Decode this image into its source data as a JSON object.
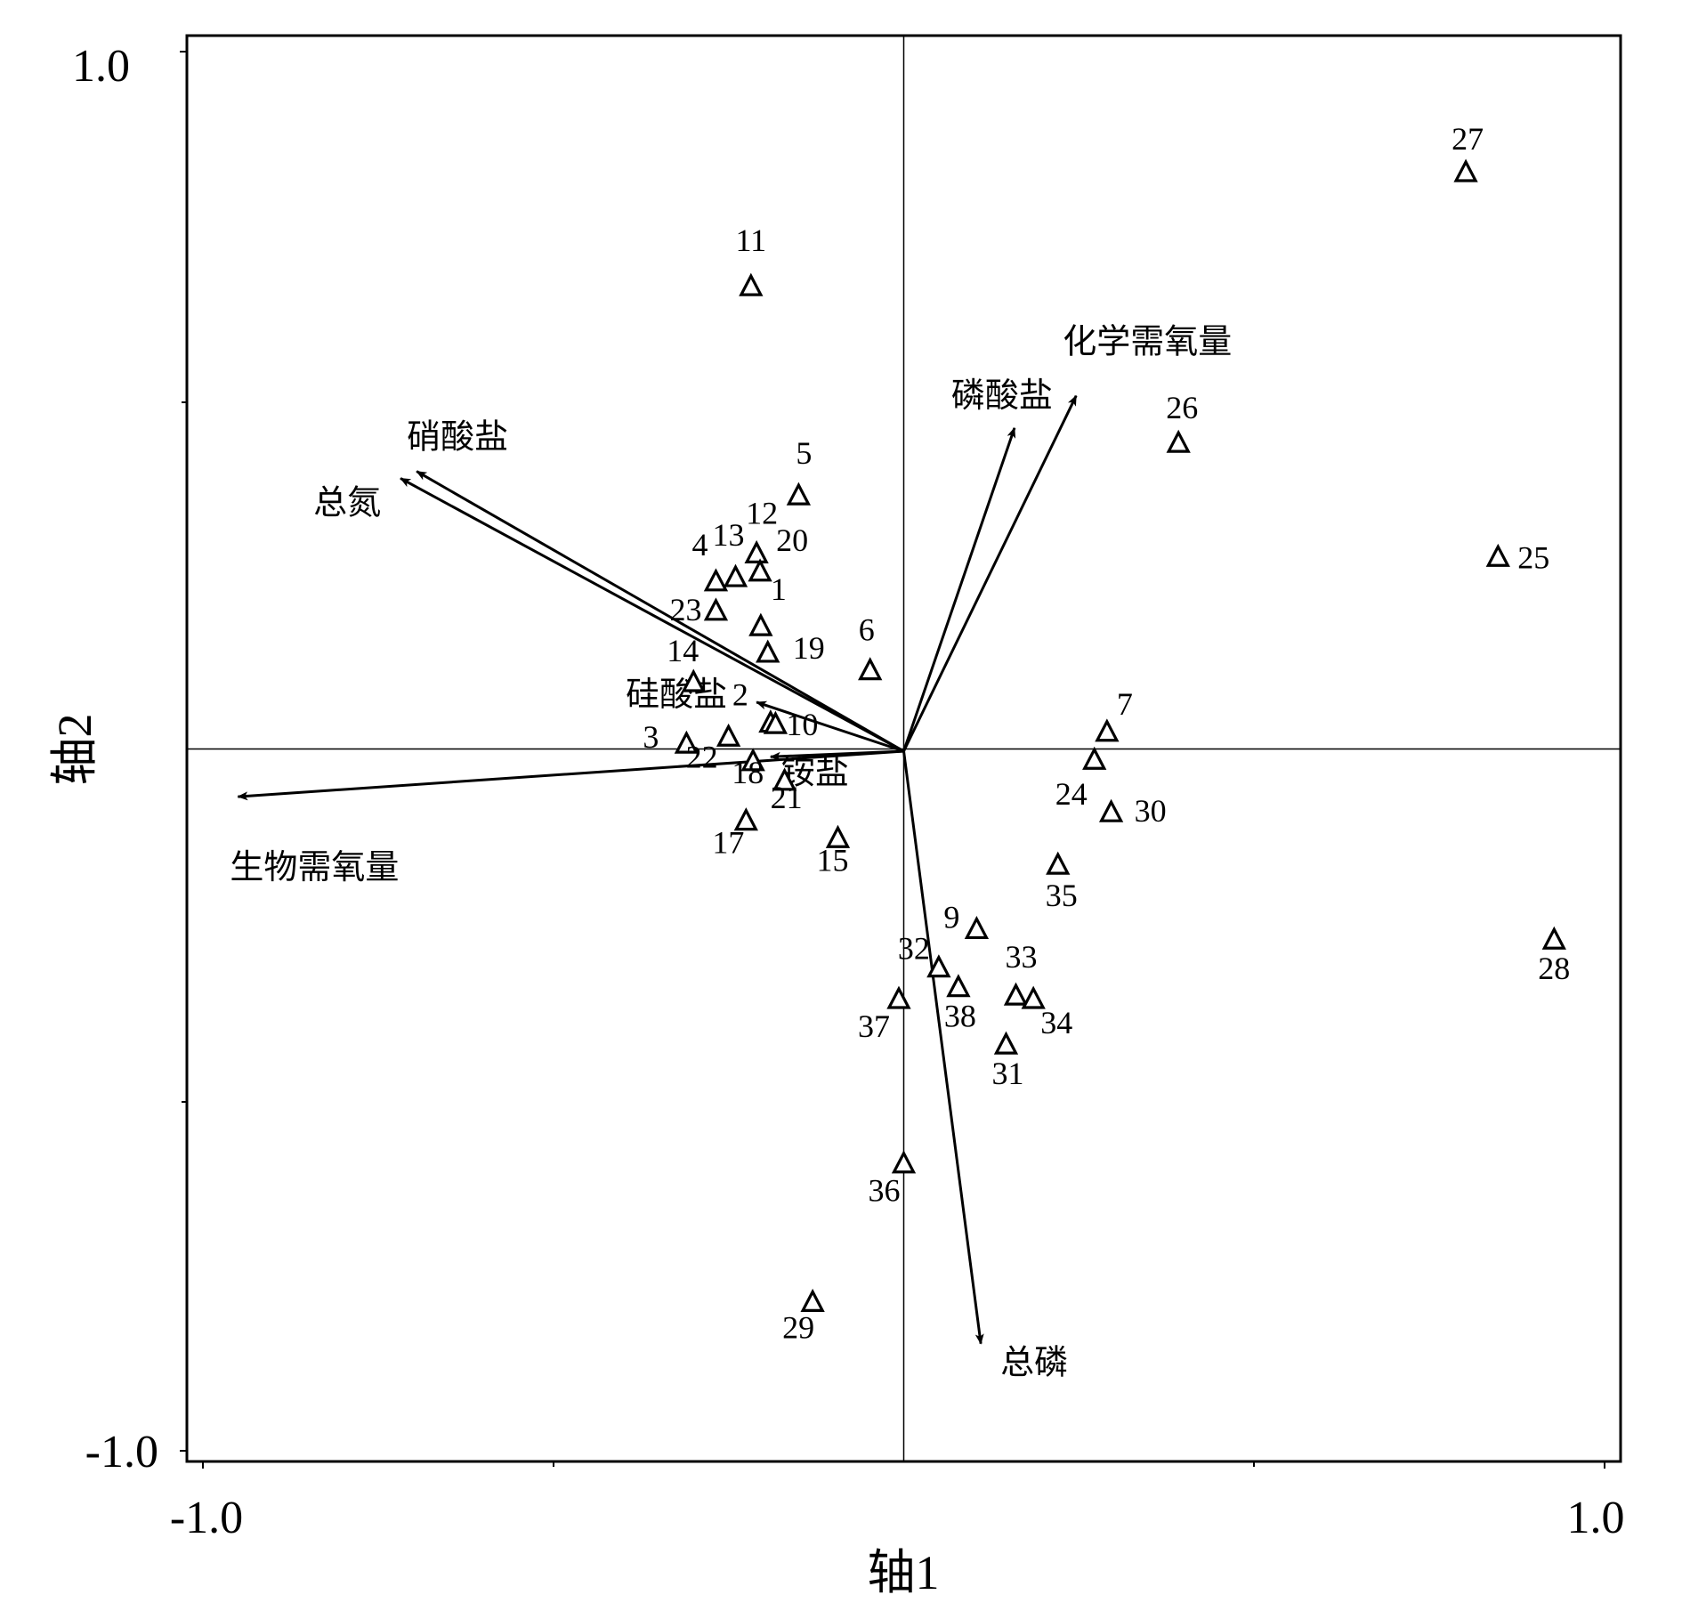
{
  "chart_data": {
    "type": "scatter",
    "title": "",
    "xlabel": "轴1",
    "ylabel": "轴2",
    "xlim": [
      -1.0,
      1.0
    ],
    "ylim": [
      -1.0,
      1.0
    ],
    "x_tick_labels": [
      "-1.0",
      "1.0"
    ],
    "y_tick_labels": [
      "1.0",
      "-1.0"
    ],
    "grid": false,
    "reference_lines": "x=0 and y=0",
    "sites": [
      {
        "label": "1",
        "x": -0.204,
        "y": 0.178
      },
      {
        "label": "2",
        "x": -0.19,
        "y": 0.04
      },
      {
        "label": "3",
        "x": -0.31,
        "y": 0.01
      },
      {
        "label": "4",
        "x": -0.268,
        "y": 0.242
      },
      {
        "label": "5",
        "x": -0.15,
        "y": 0.365
      },
      {
        "label": "6",
        "x": -0.048,
        "y": 0.115
      },
      {
        "label": "7",
        "x": 0.29,
        "y": 0.027
      },
      {
        "label": "9",
        "x": 0.104,
        "y": -0.255
      },
      {
        "label": "10",
        "x": -0.183,
        "y": 0.038
      },
      {
        "label": "11",
        "x": -0.218,
        "y": 0.664
      },
      {
        "label": "12",
        "x": -0.21,
        "y": 0.282
      },
      {
        "label": "13",
        "x": -0.24,
        "y": 0.248
      },
      {
        "label": "14",
        "x": -0.3,
        "y": 0.098
      },
      {
        "label": "15",
        "x": -0.094,
        "y": -0.125
      },
      {
        "label": "17",
        "x": -0.225,
        "y": -0.1
      },
      {
        "label": "18",
        "x": -0.215,
        "y": -0.015
      },
      {
        "label": "19",
        "x": -0.194,
        "y": 0.14
      },
      {
        "label": "20",
        "x": -0.205,
        "y": 0.256
      },
      {
        "label": "21",
        "x": -0.17,
        "y": -0.043
      },
      {
        "label": "22",
        "x": -0.25,
        "y": 0.02
      },
      {
        "label": "23",
        "x": -0.268,
        "y": 0.2
      },
      {
        "label": "24",
        "x": 0.272,
        "y": -0.013
      },
      {
        "label": "25",
        "x": 0.848,
        "y": 0.277
      },
      {
        "label": "26",
        "x": 0.392,
        "y": 0.44
      },
      {
        "label": "27",
        "x": 0.802,
        "y": 0.827
      },
      {
        "label": "28",
        "x": 0.928,
        "y": -0.27
      },
      {
        "label": "29",
        "x": -0.13,
        "y": -0.788
      },
      {
        "label": "30",
        "x": 0.296,
        "y": -0.088
      },
      {
        "label": "31",
        "x": 0.146,
        "y": -0.42
      },
      {
        "label": "32",
        "x": 0.05,
        "y": -0.31
      },
      {
        "label": "33",
        "x": 0.16,
        "y": -0.35
      },
      {
        "label": "34",
        "x": 0.185,
        "y": -0.355
      },
      {
        "label": "35",
        "x": 0.22,
        "y": -0.163
      },
      {
        "label": "36",
        "x": 0.0,
        "y": -0.59
      },
      {
        "label": "37",
        "x": -0.007,
        "y": -0.355
      },
      {
        "label": "38",
        "x": 0.078,
        "y": -0.338
      }
    ],
    "vectors": [
      {
        "label": "化学需氧量",
        "x": 0.246,
        "y": 0.508
      },
      {
        "label": "磷酸盐",
        "x": 0.158,
        "y": 0.462
      },
      {
        "label": "硝酸盐",
        "x": -0.695,
        "y": 0.4
      },
      {
        "label": "总氮",
        "x": -0.718,
        "y": 0.39
      },
      {
        "label": "硅酸盐",
        "x": -0.21,
        "y": 0.07
      },
      {
        "label": "铵盐",
        "x": -0.19,
        "y": -0.008
      },
      {
        "label": "生物需氧量",
        "x": -0.95,
        "y": -0.065
      },
      {
        "label": "总磷",
        "x": 0.11,
        "y": -0.847
      }
    ]
  }
}
